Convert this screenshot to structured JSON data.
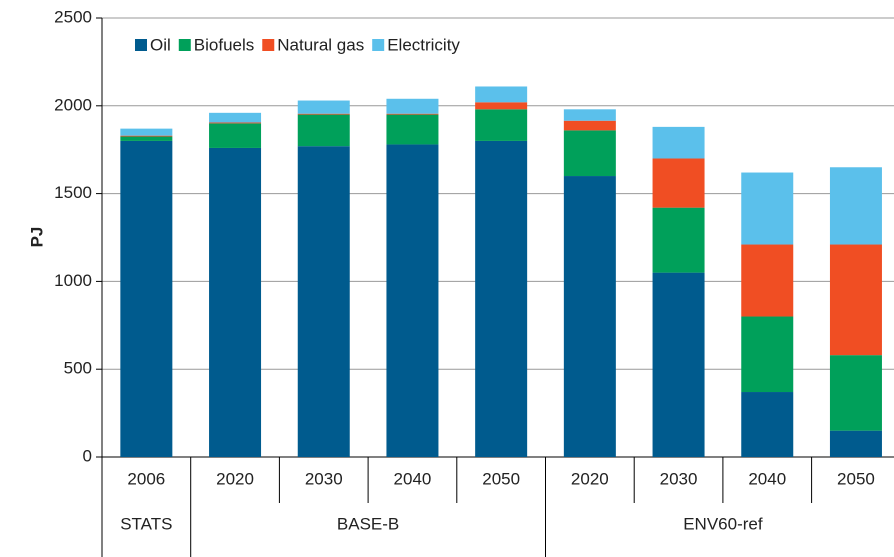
{
  "chart_data": {
    "type": "stacked_bar",
    "y_label": "PJ",
    "groups": [
      {
        "name": "STATS",
        "categories": [
          "2006"
        ]
      },
      {
        "name": "BASE-B",
        "categories": [
          "2020",
          "2030",
          "2040",
          "2050"
        ]
      },
      {
        "name": "ENV60-ref",
        "categories": [
          "2020",
          "2030",
          "2040",
          "2050"
        ]
      }
    ],
    "series": [
      {
        "name": "Oil",
        "color": "#005b8e",
        "values": [
          1800,
          1760,
          1770,
          1780,
          1800,
          1600,
          1050,
          370,
          150
        ]
      },
      {
        "name": "Biofuels",
        "color": "#00a05a",
        "values": [
          25,
          140,
          180,
          170,
          180,
          260,
          370,
          430,
          430
        ]
      },
      {
        "name": "Natural gas",
        "color": "#f04e23",
        "values": [
          5,
          5,
          5,
          5,
          40,
          55,
          280,
          410,
          630
        ]
      },
      {
        "name": "Electricity",
        "color": "#5bc0eb",
        "values": [
          40,
          55,
          75,
          85,
          90,
          65,
          180,
          410,
          440
        ]
      }
    ],
    "ylim": [
      0,
      2500
    ],
    "yticks": [
      0,
      500,
      1000,
      1500,
      2000,
      2500
    ],
    "grid": true,
    "legend": "top-left"
  }
}
